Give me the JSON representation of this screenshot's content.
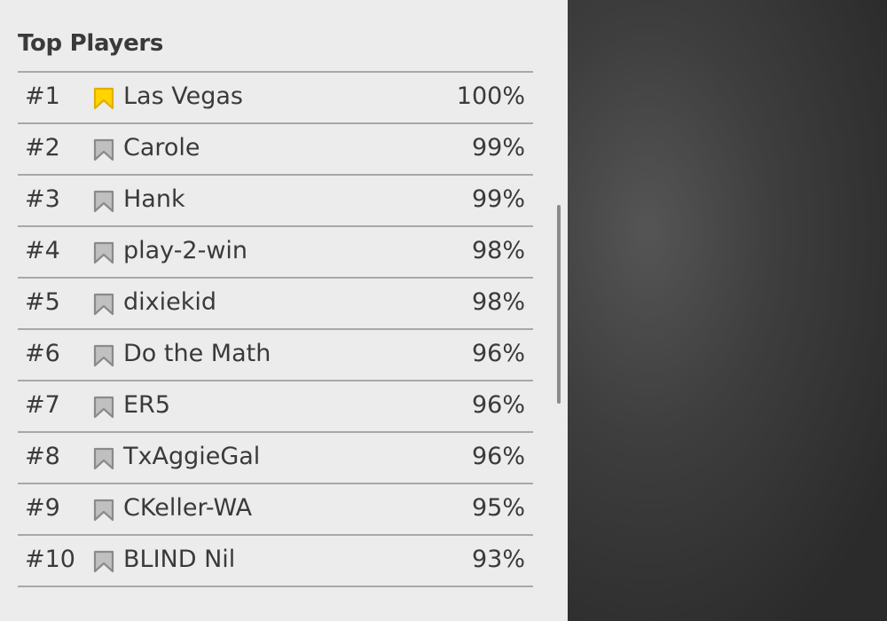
{
  "title": "Top Players",
  "colors": {
    "leader_icon": "#ffd400",
    "other_icon": "#c0c0c0"
  },
  "players": [
    {
      "rank": "#1",
      "name": "Las Vegas",
      "percent": "100%",
      "icon": "bookmark-gold-icon"
    },
    {
      "rank": "#2",
      "name": "Carole",
      "percent": "99%",
      "icon": "bookmark-gray-icon"
    },
    {
      "rank": "#3",
      "name": "Hank",
      "percent": "99%",
      "icon": "bookmark-gray-icon"
    },
    {
      "rank": "#4",
      "name": "play-2-win",
      "percent": "98%",
      "icon": "bookmark-gray-icon"
    },
    {
      "rank": "#5",
      "name": "dixiekid",
      "percent": "98%",
      "icon": "bookmark-gray-icon"
    },
    {
      "rank": "#6",
      "name": "Do the Math",
      "percent": "96%",
      "icon": "bookmark-gray-icon"
    },
    {
      "rank": "#7",
      "name": "ER5",
      "percent": "96%",
      "icon": "bookmark-gray-icon"
    },
    {
      "rank": "#8",
      "name": "TxAggieGal",
      "percent": "96%",
      "icon": "bookmark-gray-icon"
    },
    {
      "rank": "#9",
      "name": "CKeller-WA",
      "percent": "95%",
      "icon": "bookmark-gray-icon"
    },
    {
      "rank": "#10",
      "name": "BLIND Nil",
      "percent": "93%",
      "icon": "bookmark-gray-icon"
    }
  ]
}
